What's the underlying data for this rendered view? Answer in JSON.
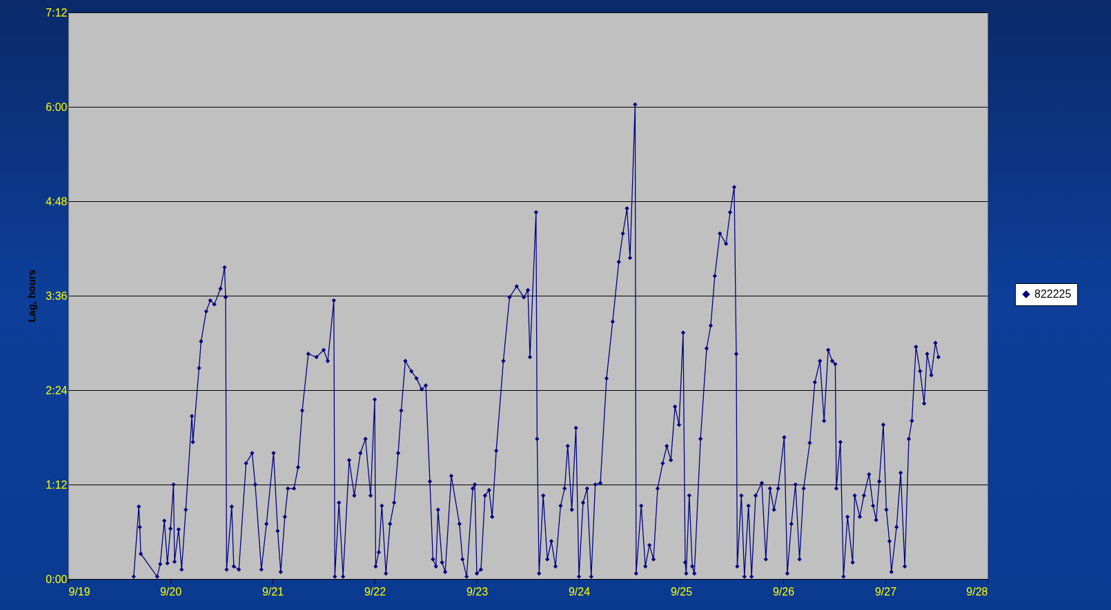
{
  "chart_data": {
    "type": "line",
    "ylabel": "Lag, hours",
    "xlim": [
      "--09-19",
      "--09-28"
    ],
    "ylim": [
      0,
      7.2
    ],
    "xticks": [
      {
        "value": "--09-19",
        "label": "9/19"
      },
      {
        "value": "--09-20",
        "label": "9/20"
      },
      {
        "value": "--09-21",
        "label": "9/21"
      },
      {
        "value": "--09-22",
        "label": "9/22"
      },
      {
        "value": "--09-23",
        "label": "9/23"
      },
      {
        "value": "--09-24",
        "label": "9/24"
      },
      {
        "value": "--09-25",
        "label": "9/25"
      },
      {
        "value": "--09-26",
        "label": "9/26"
      },
      {
        "value": "--09-27",
        "label": "9/27"
      },
      {
        "value": "--09-28",
        "label": "9/28"
      }
    ],
    "yticks": [
      {
        "value": 0,
        "label": "0:00"
      },
      {
        "value": 1.2,
        "label": "1:12"
      },
      {
        "value": 2.4,
        "label": "2:24"
      },
      {
        "value": 3.6,
        "label": "3:36"
      },
      {
        "value": 4.8,
        "label": "4:48"
      },
      {
        "value": 6,
        "label": "6:00"
      },
      {
        "value": 7.2,
        "label": "7:12"
      }
    ],
    "grid": "y",
    "legend": "right",
    "marker": "diamond",
    "line_style": "solid",
    "series": [
      {
        "name": "822225",
        "color": "#000080",
        "x": [
          "--09-19T15:22",
          "--09-19T16:34",
          "--09-19T16:48",
          "--09-19T17:02",
          "--09-19T20:53",
          "--09-19T21:36",
          "--09-19T22:34",
          "--09-19T23:17",
          "--09-20T00:00",
          "--09-20T00:43",
          "--09-20T00:58",
          "--09-20T01:55",
          "--09-20T02:38",
          "--09-20T03:36",
          "--09-20T05:02",
          "--09-20T05:17",
          "--09-20T06:43",
          "--09-20T07:12",
          "--09-20T08:24",
          "--09-20T09:22",
          "--09-20T10:19",
          "--09-20T11:46",
          "--09-20T12:43",
          "--09-20T12:58",
          "--09-20T13:12",
          "--09-20T14:24",
          "--09-20T14:53",
          "--09-20T16:05",
          "--09-20T17:46",
          "--09-20T19:12",
          "--09-20T19:55",
          "--09-20T21:22",
          "--09-20T22:34",
          "--09-21T00:14",
          "--09-21T01:12",
          "--09-21T01:55",
          "--09-21T02:53",
          "--09-21T03:36",
          "--09-21T05:02",
          "--09-21T06:00",
          "--09-21T06:58",
          "--09-21T08:24",
          "--09-21T10:19",
          "--09-21T12:00",
          "--09-21T12:58",
          "--09-21T14:24",
          "--09-21T14:38",
          "--09-21T15:36",
          "--09-21T16:34",
          "--09-21T18:00",
          "--09-21T19:12",
          "--09-21T20:38",
          "--09-21T21:50",
          "--09-21T23:02",
          "--09-22T00:00",
          "--09-22T00:14",
          "--09-22T00:58",
          "--09-22T01:41",
          "--09-22T02:38",
          "--09-22T03:36",
          "--09-22T04:34",
          "--09-22T05:31",
          "--09-22T06:14",
          "--09-22T07:12",
          "--09-22T08:38",
          "--09-22T09:50",
          "--09-22T11:02",
          "--09-22T12:00",
          "--09-22T12:58",
          "--09-22T13:41",
          "--09-22T14:24",
          "--09-22T14:53",
          "--09-22T15:50",
          "--09-22T16:34",
          "--09-22T18:00",
          "--09-22T19:55",
          "--09-22T20:38",
          "--09-22T21:36",
          "--09-22T23:02",
          "--09-22T23:31",
          "--09-23T00:00",
          "--09-23T00:58",
          "--09-23T01:55",
          "--09-23T02:53",
          "--09-23T03:36",
          "--09-23T04:34",
          "--09-23T06:14",
          "--09-23T07:41",
          "--09-23T09:22",
          "--09-23T11:02",
          "--09-23T12:00",
          "--09-23T12:29",
          "--09-23T13:55",
          "--09-23T14:10",
          "--09-23T14:38",
          "--09-23T15:36",
          "--09-23T16:34",
          "--09-23T17:31",
          "--09-23T18:29",
          "--09-23T19:41",
          "--09-23T20:38",
          "--09-23T21:22",
          "--09-23T22:19",
          "--09-23T23:17",
          "--09-24T00:00",
          "--09-24T00:58",
          "--09-24T01:55",
          "--09-24T02:53",
          "--09-24T03:50",
          "--09-24T05:02",
          "--09-24T06:29",
          "--09-24T07:55",
          "--09-24T09:22",
          "--09-24T10:19",
          "--09-24T11:17",
          "--09-24T12:00",
          "--09-24T13:12",
          "--09-24T13:26",
          "--09-24T14:38",
          "--09-24T15:36",
          "--09-24T16:34",
          "--09-24T17:31",
          "--09-24T18:29",
          "--09-24T19:41",
          "--09-24T20:38",
          "--09-24T21:36",
          "--09-24T22:34",
          "--09-24T23:31",
          "--09-25T00:29",
          "--09-25T00:58",
          "--09-25T01:12",
          "--09-25T01:55",
          "--09-25T02:38",
          "--09-25T03:07",
          "--09-25T04:34",
          "--09-25T06:00",
          "--09-25T06:58",
          "--09-25T07:55",
          "--09-25T09:07",
          "--09-25T10:34",
          "--09-25T11:31",
          "--09-25T12:29",
          "--09-25T12:58",
          "--09-25T13:12",
          "--09-25T14:10",
          "--09-25T14:53",
          "--09-25T15:50",
          "--09-25T16:34",
          "--09-25T17:31",
          "--09-25T18:58",
          "--09-25T19:55",
          "--09-25T20:53",
          "--09-25T21:50",
          "--09-25T22:48",
          "--09-26T00:14",
          "--09-26T00:58",
          "--09-26T01:55",
          "--09-26T02:53",
          "--09-26T03:50",
          "--09-26T04:48",
          "--09-26T06:14",
          "--09-26T07:26",
          "--09-26T08:38",
          "--09-26T09:36",
          "--09-26T10:34",
          "--09-26T11:31",
          "--09-26T12:14",
          "--09-26T12:29",
          "--09-26T13:26",
          "--09-26T14:10",
          "--09-26T15:07",
          "--09-26T16:19",
          "--09-26T16:48",
          "--09-26T18:00",
          "--09-26T18:58",
          "--09-26T20:10",
          "--09-26T21:07",
          "--09-26T21:50",
          "--09-26T22:34",
          "--09-26T23:31",
          "--09-27T00:14",
          "--09-27T00:58",
          "--09-27T01:26",
          "--09-27T02:38",
          "--09-27T03:36",
          "--09-27T04:34",
          "--09-27T05:31",
          "--09-27T06:14",
          "--09-27T07:12",
          "--09-27T08:10",
          "--09-27T09:07",
          "--09-27T09:50",
          "--09-27T10:48",
          "--09-27T11:46",
          "--09-27T12:29"
        ],
        "values": [
          0.03,
          0.92,
          0.66,
          0.32,
          0.03,
          0.19,
          0.74,
          0.2,
          0.64,
          1.2,
          0.22,
          0.63,
          0.12,
          0.88,
          2.07,
          1.74,
          2.68,
          3.02,
          3.4,
          3.54,
          3.49,
          3.69,
          3.96,
          3.58,
          0.12,
          0.92,
          0.16,
          0.12,
          1.47,
          1.6,
          1.2,
          0.12,
          0.7,
          1.6,
          0.61,
          0.09,
          0.79,
          1.15,
          1.15,
          1.42,
          2.14,
          2.86,
          2.82,
          2.91,
          2.77,
          3.54,
          0.03,
          0.97,
          0.03,
          1.51,
          1.06,
          1.6,
          1.78,
          1.06,
          2.28,
          0.16,
          0.34,
          0.93,
          0.07,
          0.7,
          0.97,
          1.6,
          2.14,
          2.77,
          2.64,
          2.55,
          2.41,
          2.46,
          1.24,
          0.25,
          0.16,
          0.88,
          0.21,
          0.09,
          1.31,
          0.7,
          0.25,
          0.03,
          1.15,
          1.2,
          0.07,
          0.12,
          1.06,
          1.13,
          0.79,
          1.63,
          2.77,
          3.58,
          3.72,
          3.58,
          3.67,
          2.82,
          4.66,
          1.78,
          0.07,
          1.06,
          0.25,
          0.48,
          0.16,
          0.93,
          1.15,
          1.69,
          0.88,
          1.92,
          0.03,
          0.97,
          1.15,
          0.03,
          1.2,
          1.22,
          2.55,
          3.27,
          4.03,
          4.39,
          4.71,
          4.08,
          6.03,
          0.07,
          0.93,
          0.16,
          0.43,
          0.25,
          1.15,
          1.47,
          1.69,
          1.51,
          2.19,
          1.96,
          3.13,
          0.21,
          0.07,
          1.06,
          0.16,
          0.07,
          1.78,
          2.93,
          3.22,
          3.85,
          4.39,
          4.26,
          4.66,
          4.98,
          2.86,
          0.16,
          1.06,
          0.03,
          0.93,
          0.03,
          1.06,
          1.22,
          0.25,
          1.15,
          0.88,
          1.15,
          1.8,
          0.07,
          0.7,
          1.2,
          0.25,
          1.15,
          1.73,
          2.5,
          2.77,
          2.01,
          2.91,
          2.77,
          2.73,
          1.15,
          1.74,
          0.03,
          0.79,
          0.21,
          1.06,
          0.79,
          1.06,
          1.33,
          0.93,
          0.75,
          1.24,
          1.96,
          0.88,
          0.48,
          0.09,
          0.66,
          1.35,
          0.16,
          1.78,
          2.01,
          2.95,
          2.64,
          2.23,
          2.86,
          2.59,
          3.0,
          2.82
        ]
      }
    ]
  }
}
